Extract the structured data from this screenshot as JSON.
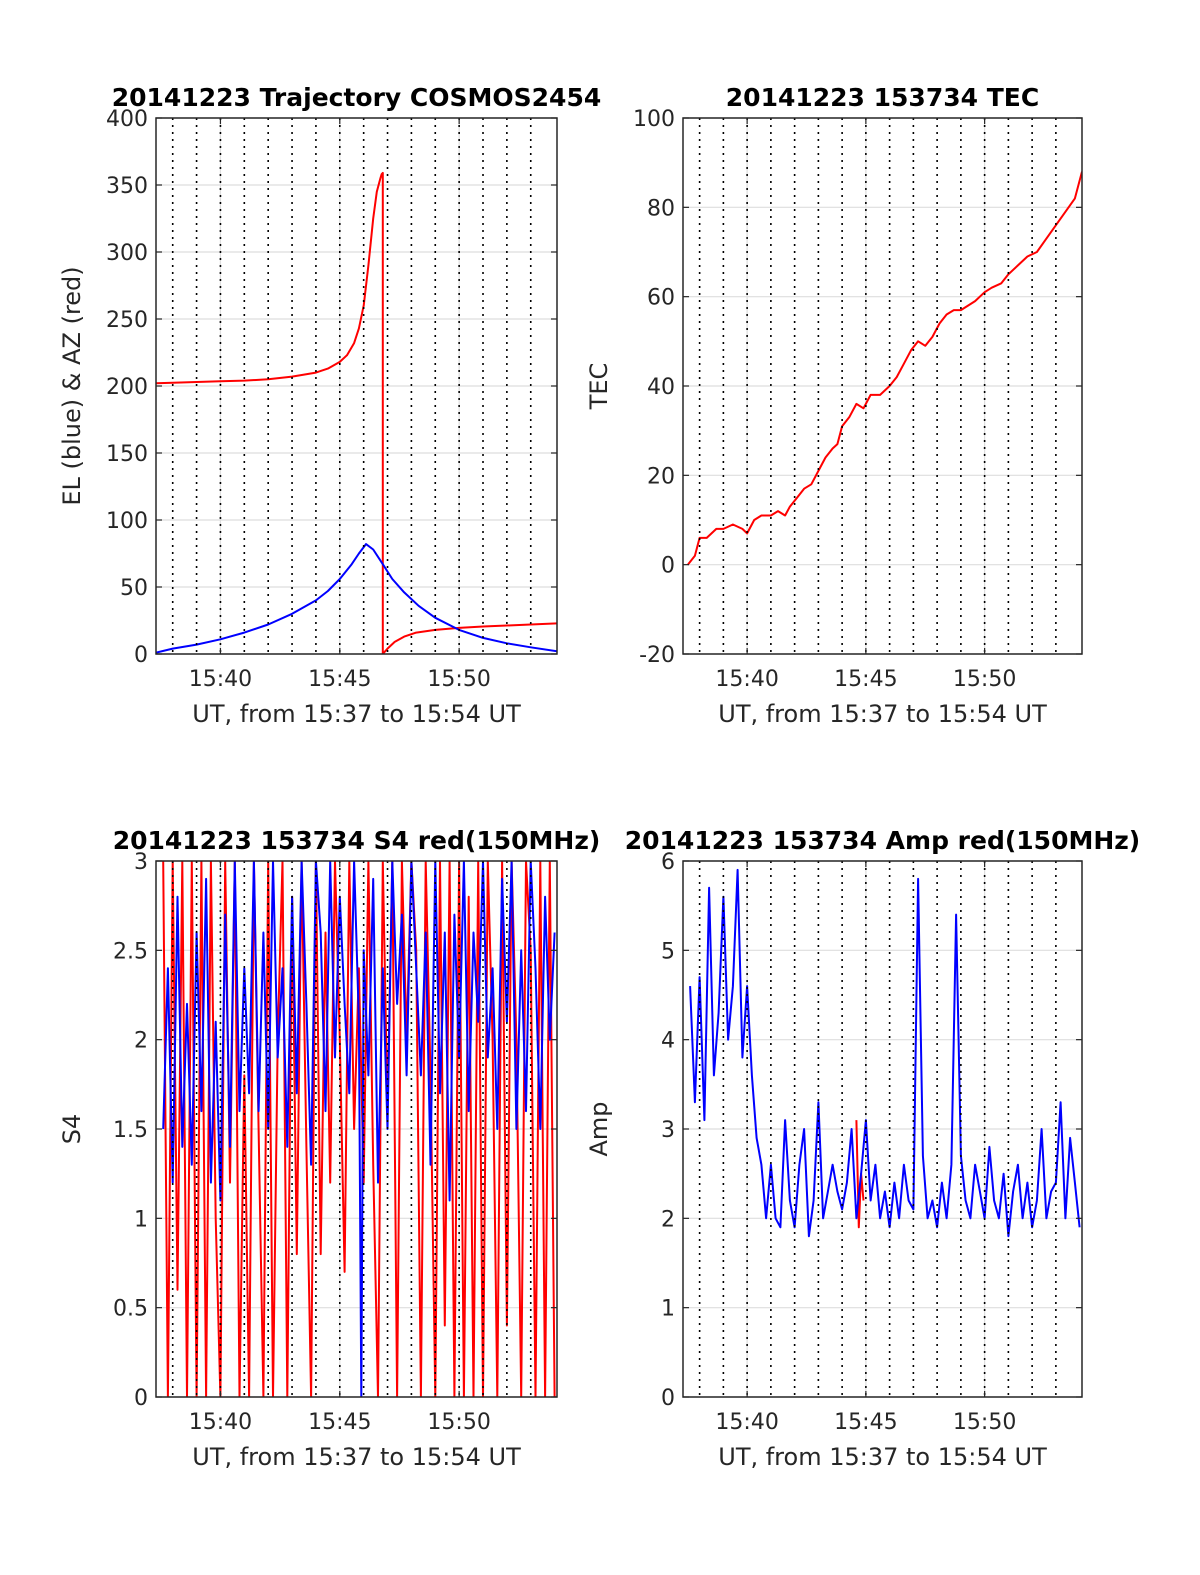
{
  "chart_data": [
    {
      "id": "trajectory",
      "type": "line",
      "title": "20141223 Trajectory COSMOS2454",
      "xlabel": "UT, from 15:37 to 15:54 UT",
      "ylabel": "EL (blue) & AZ (red)",
      "x_unit": "minutes UT (hours 15)",
      "xlim": [
        937.3,
        954.1
      ],
      "ylim": [
        0,
        400
      ],
      "yticks": [
        0,
        50,
        100,
        150,
        200,
        250,
        300,
        350,
        400
      ],
      "ytick_labels": [
        "0",
        "50",
        "100",
        "150",
        "200",
        "250",
        "300",
        "350",
        "400"
      ],
      "xticks": [
        940,
        945,
        950
      ],
      "xtick_labels": [
        "15:40",
        "15:45",
        "15:50"
      ],
      "minute_lines": [
        938,
        939,
        940,
        941,
        942,
        943,
        944,
        945,
        946,
        947,
        948,
        949,
        950,
        951,
        952,
        953
      ],
      "grid": true,
      "series": [
        {
          "color": "#ff0000",
          "x": [
            937.3,
            938,
            939,
            940,
            941,
            942,
            943,
            944,
            944.5,
            945,
            945.3,
            945.6,
            945.8,
            946,
            946.2,
            946.4,
            946.55,
            946.7,
            946.75,
            946.8,
            946.8,
            946.85,
            947,
            947.3,
            947.7,
            948.2,
            949,
            950,
            951,
            952,
            953,
            954.1
          ],
          "y": [
            202,
            202.5,
            203,
            203.5,
            204,
            205,
            207,
            210,
            213,
            218,
            223,
            232,
            243,
            260,
            290,
            325,
            345,
            355,
            358,
            359,
            0,
            1,
            4,
            9,
            13,
            16,
            18,
            19.5,
            20.5,
            21.3,
            22,
            22.8
          ]
        },
        {
          "color": "#0000ff",
          "x": [
            937.3,
            938,
            939,
            940,
            941,
            942,
            943,
            944,
            944.5,
            945,
            945.5,
            945.8,
            946.1,
            946.4,
            946.8,
            947.2,
            947.7,
            948.3,
            949,
            950,
            951,
            952,
            953,
            954.1
          ],
          "y": [
            1,
            4,
            7,
            11,
            16,
            22,
            30,
            40,
            47,
            56,
            67,
            75,
            82,
            78,
            67,
            56,
            46,
            36,
            27,
            18,
            12,
            8,
            5,
            2
          ]
        }
      ]
    },
    {
      "id": "tec",
      "type": "line",
      "title": "20141223 153734 TEC",
      "xlabel": "UT, from 15:37 to 15:54 UT",
      "ylabel": "TEC",
      "x_unit": "minutes UT (hours 15)",
      "xlim": [
        937.3,
        954.1
      ],
      "ylim": [
        -20,
        100
      ],
      "yticks": [
        -20,
        0,
        20,
        40,
        60,
        80,
        100
      ],
      "ytick_labels": [
        "-20",
        "0",
        "20",
        "40",
        "60",
        "80",
        "100"
      ],
      "xticks": [
        940,
        945,
        950
      ],
      "xtick_labels": [
        "15:40",
        "15:45",
        "15:50"
      ],
      "minute_lines": [
        938,
        939,
        940,
        941,
        942,
        943,
        944,
        945,
        946,
        947,
        948,
        949,
        950,
        951,
        952,
        953
      ],
      "grid": true,
      "series": [
        {
          "color": "#ff0000",
          "x": [
            937.5,
            937.8,
            938.0,
            938.3,
            938.7,
            939.0,
            939.4,
            939.8,
            940.0,
            940.3,
            940.6,
            941.0,
            941.3,
            941.6,
            941.8,
            942.1,
            942.4,
            942.7,
            943.0,
            943.3,
            943.6,
            943.8,
            944.0,
            944.3,
            944.6,
            944.9,
            945.2,
            945.6,
            946.0,
            946.3,
            946.6,
            946.9,
            947.2,
            947.5,
            947.8,
            948.1,
            948.4,
            948.7,
            949.0,
            949.3,
            949.6,
            950.0,
            950.3,
            950.7,
            951.0,
            951.4,
            951.8,
            952.2,
            952.6,
            953.0,
            953.4,
            953.8,
            954.1
          ],
          "y": [
            0,
            2,
            6,
            6,
            8,
            8,
            9,
            8,
            7,
            10,
            11,
            11,
            12,
            11,
            13,
            15,
            17,
            18,
            21,
            24,
            26,
            27,
            31,
            33,
            36,
            35,
            38,
            38,
            40,
            42,
            45,
            48,
            50,
            49,
            51,
            54,
            56,
            57,
            57,
            58,
            59,
            61,
            62,
            63,
            65,
            67,
            69,
            70,
            73,
            76,
            79,
            82,
            88
          ]
        }
      ]
    },
    {
      "id": "s4",
      "type": "line",
      "title": "20141223 153734 S4 red(150MHz)",
      "xlabel": "UT, from 15:37 to 15:54 UT",
      "ylabel": "S4",
      "x_unit": "minutes UT (hours 15)",
      "xlim": [
        937.3,
        954.1
      ],
      "ylim": [
        0,
        3
      ],
      "yticks": [
        0,
        0.5,
        1,
        1.5,
        2,
        2.5,
        3
      ],
      "ytick_labels": [
        "0",
        "0.5",
        "1",
        "1.5",
        "2",
        "2.5",
        "3"
      ],
      "xticks": [
        940,
        945,
        950
      ],
      "xtick_labels": [
        "15:40",
        "15:45",
        "15:50"
      ],
      "minute_lines": [
        938,
        939,
        940,
        941,
        942,
        943,
        944,
        945,
        946,
        947,
        948,
        949,
        950,
        951,
        952,
        953
      ],
      "grid": true,
      "series": [
        {
          "color": "#ff0000",
          "x": [
            937.6,
            937.8,
            938.0,
            938.2,
            938.4,
            938.6,
            938.8,
            939.0,
            939.2,
            939.4,
            939.6,
            939.8,
            940.0,
            940.2,
            940.4,
            940.6,
            940.8,
            941.0,
            941.2,
            941.4,
            941.6,
            941.8,
            942.0,
            942.2,
            942.4,
            942.6,
            942.8,
            943.0,
            943.2,
            943.4,
            943.6,
            943.8,
            944.0,
            944.2,
            944.4,
            944.6,
            944.8,
            945.0,
            945.2,
            945.4,
            945.6,
            945.8,
            946.0,
            946.2,
            946.4,
            946.6,
            946.8,
            947.0,
            947.2,
            947.4,
            947.6,
            947.8,
            948.0,
            948.2,
            948.4,
            948.6,
            948.8,
            949.0,
            949.2,
            949.4,
            949.6,
            949.8,
            950.0,
            950.2,
            950.4,
            950.6,
            950.8,
            951.0,
            951.2,
            951.4,
            951.6,
            951.8,
            952.0,
            952.2,
            952.4,
            952.6,
            952.8,
            953.0,
            953.2,
            953.4,
            953.6,
            953.8,
            954.0
          ],
          "y": [
            3,
            0,
            3,
            0.6,
            3,
            0,
            3,
            0,
            3,
            0,
            3,
            1,
            0,
            3,
            1.2,
            3,
            0,
            1.8,
            0,
            3,
            1.5,
            0,
            3,
            0,
            2,
            3,
            0,
            2.8,
            0.8,
            3,
            1.4,
            0,
            3,
            0.8,
            2.6,
            1.2,
            3,
            2,
            0.7,
            3,
            1.5,
            2.4,
            1.2,
            3,
            1.3,
            0,
            3,
            1.6,
            3,
            0,
            3,
            2,
            3,
            2.5,
            0,
            3,
            1.8,
            0,
            3,
            0.4,
            3,
            0,
            3,
            0,
            2.8,
            0,
            3,
            0,
            3,
            2,
            0,
            3,
            0.4,
            3,
            2,
            0,
            3,
            2.5,
            0,
            3,
            0,
            3,
            0
          ]
        },
        {
          "color": "#0000ff",
          "x": [
            937.6,
            937.8,
            938.0,
            938.2,
            938.4,
            938.6,
            938.8,
            939.0,
            939.2,
            939.4,
            939.6,
            939.8,
            940.0,
            940.2,
            940.4,
            940.6,
            940.8,
            941.0,
            941.2,
            941.4,
            941.6,
            941.8,
            942.0,
            942.2,
            942.4,
            942.6,
            942.8,
            943.0,
            943.2,
            943.4,
            943.6,
            943.8,
            944.0,
            944.2,
            944.4,
            944.6,
            944.8,
            945.0,
            945.2,
            945.4,
            945.6,
            945.8,
            945.9,
            946.0,
            946.2,
            946.4,
            946.6,
            946.8,
            947.0,
            947.2,
            947.4,
            947.6,
            947.8,
            948.0,
            948.2,
            948.4,
            948.6,
            948.8,
            949.0,
            949.2,
            949.4,
            949.6,
            949.8,
            950.0,
            950.2,
            950.4,
            950.6,
            950.8,
            951.0,
            951.2,
            951.4,
            951.6,
            951.8,
            952.0,
            952.2,
            952.4,
            952.6,
            952.8,
            953.0,
            953.2,
            953.4,
            953.6,
            953.8,
            954.0
          ],
          "y": [
            1.5,
            2.4,
            1.2,
            2.8,
            1.4,
            2.2,
            1.3,
            2.6,
            1.6,
            2.9,
            1.2,
            2.1,
            1.1,
            2.7,
            1.4,
            3,
            1.6,
            2.4,
            1.7,
            3,
            1.6,
            2.6,
            1.5,
            3,
            1.9,
            2.4,
            1.4,
            2.8,
            1.7,
            3,
            2.2,
            1.3,
            3,
            2.6,
            1.6,
            3,
            1.9,
            2.8,
            2.2,
            1.7,
            3,
            2.1,
            0,
            2.5,
            1.8,
            2.9,
            1.2,
            2.4,
            1.5,
            3,
            2.2,
            2.7,
            1.8,
            3,
            2.4,
            1.8,
            2.6,
            1.3,
            3,
            1.7,
            2.6,
            1.1,
            2.7,
            1.9,
            3,
            1.6,
            2.6,
            2.1,
            3,
            1.9,
            2.4,
            1.5,
            2.9,
            2.1,
            3,
            1.5,
            2.5,
            1.6,
            3,
            2.4,
            1.5,
            2.8,
            2,
            2.6
          ]
        }
      ]
    },
    {
      "id": "amp",
      "type": "line",
      "title": "20141223 153734 Amp red(150MHz)",
      "xlabel": "UT, from 15:37 to 15:54 UT",
      "ylabel": "Amp",
      "x_unit": "minutes UT (hours 15)",
      "xlim": [
        937.3,
        954.1
      ],
      "ylim": [
        0,
        6
      ],
      "yticks": [
        0,
        1,
        2,
        3,
        4,
        5,
        6
      ],
      "ytick_labels": [
        "0",
        "1",
        "2",
        "3",
        "4",
        "5",
        "6"
      ],
      "xticks": [
        940,
        945,
        950
      ],
      "xtick_labels": [
        "15:40",
        "15:45",
        "15:50"
      ],
      "minute_lines": [
        938,
        939,
        940,
        941,
        942,
        943,
        944,
        945,
        946,
        947,
        948,
        949,
        950,
        951,
        952,
        953
      ],
      "grid": true,
      "series": [
        {
          "color": "#ff0000",
          "x": [
            944.6,
            944.7,
            944.8,
            944.9
          ],
          "y": [
            3.1,
            1.9,
            2.5,
            2.2
          ]
        },
        {
          "color": "#0000ff",
          "x": [
            937.6,
            937.8,
            938.0,
            938.2,
            938.4,
            938.6,
            938.8,
            939.0,
            939.2,
            939.4,
            939.6,
            939.8,
            940.0,
            940.2,
            940.4,
            940.6,
            940.8,
            941.0,
            941.2,
            941.4,
            941.6,
            941.8,
            942.0,
            942.2,
            942.4,
            942.6,
            942.8,
            943.0,
            943.2,
            943.4,
            943.6,
            943.8,
            944.0,
            944.2,
            944.4,
            944.6,
            944.8,
            945.0,
            945.2,
            945.4,
            945.6,
            945.8,
            946.0,
            946.2,
            946.4,
            946.6,
            946.8,
            947.0,
            947.2,
            947.4,
            947.6,
            947.8,
            948.0,
            948.2,
            948.4,
            948.6,
            948.8,
            949.0,
            949.2,
            949.4,
            949.6,
            949.8,
            950.0,
            950.2,
            950.4,
            950.6,
            950.8,
            951.0,
            951.2,
            951.4,
            951.6,
            951.8,
            952.0,
            952.2,
            952.4,
            952.6,
            952.8,
            953.0,
            953.2,
            953.4,
            953.6,
            953.8,
            954.0
          ],
          "y": [
            4.6,
            3.3,
            4.7,
            3.1,
            5.7,
            3.6,
            4.3,
            5.6,
            4.0,
            4.6,
            5.9,
            3.8,
            4.6,
            3.6,
            2.9,
            2.6,
            2.0,
            2.6,
            2.0,
            1.9,
            3.1,
            2.2,
            1.9,
            2.6,
            3.0,
            1.8,
            2.2,
            3.3,
            2.0,
            2.3,
            2.6,
            2.3,
            2.1,
            2.4,
            3.0,
            2.0,
            2.5,
            3.1,
            2.2,
            2.6,
            2.0,
            2.3,
            1.9,
            2.4,
            2.0,
            2.6,
            2.2,
            2.1,
            5.8,
            2.7,
            2.0,
            2.2,
            1.9,
            2.4,
            2.0,
            2.6,
            5.4,
            2.7,
            2.2,
            2.0,
            2.6,
            2.3,
            2.0,
            2.8,
            2.2,
            2.0,
            2.5,
            1.8,
            2.3,
            2.6,
            2.0,
            2.4,
            1.9,
            2.2,
            3.0,
            2.0,
            2.3,
            2.4,
            3.3,
            2.0,
            2.9,
            2.4,
            1.9
          ]
        }
      ]
    }
  ]
}
